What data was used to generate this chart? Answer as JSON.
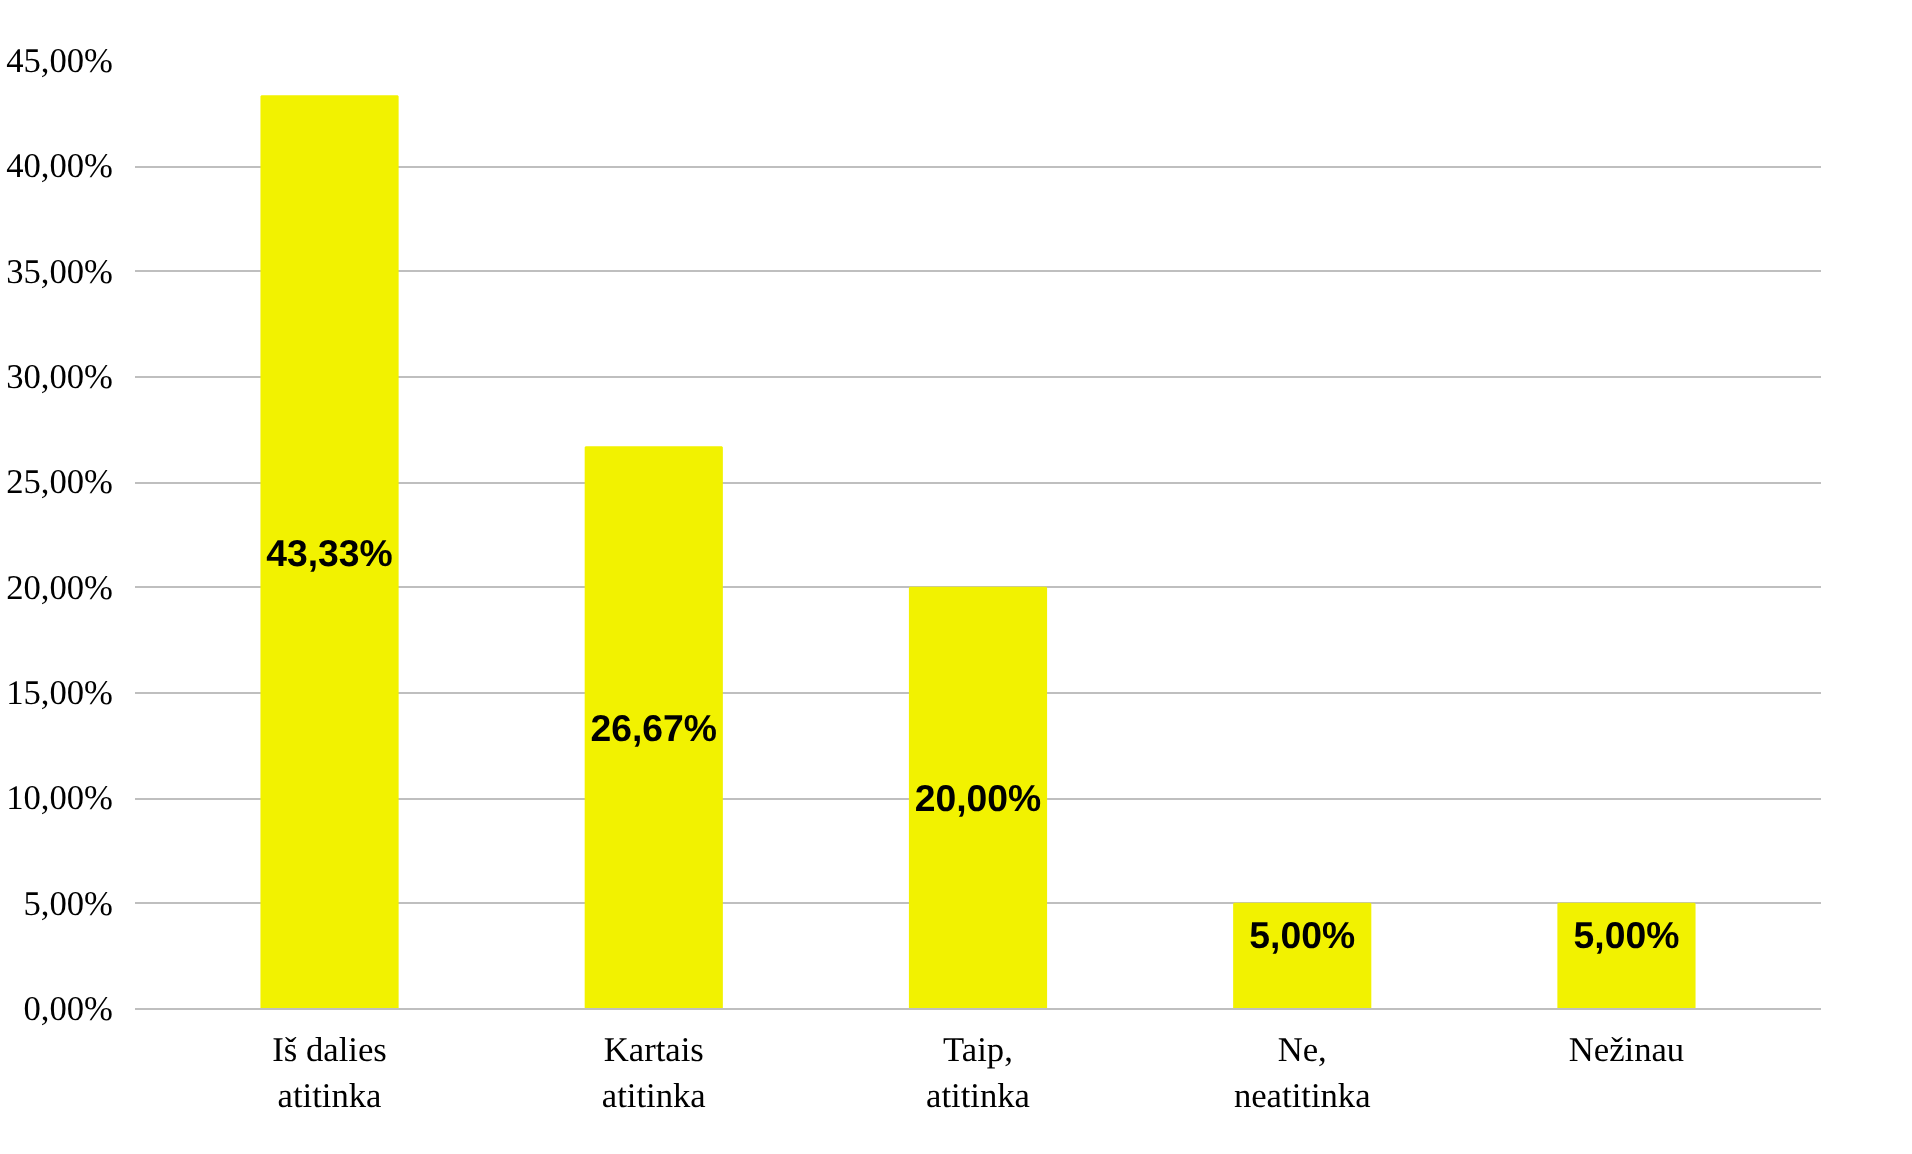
{
  "chart_data": {
    "type": "bar",
    "categories": [
      "Iš dalies\natitinka",
      "Kartais\natitinka",
      "Taip,\natitinka",
      "Ne,\nneatitinka",
      "Nežinau"
    ],
    "values": [
      43.33,
      26.67,
      20.0,
      5.0,
      5.0
    ],
    "value_labels": [
      "43,33%",
      "26,67%",
      "20,00%",
      "5,00%",
      "5,00%"
    ],
    "color": "#f2f200",
    "ylim": [
      0,
      45
    ],
    "yticks": [
      {
        "value": 0,
        "label": "0,00%"
      },
      {
        "value": 5,
        "label": "5,00%"
      },
      {
        "value": 10,
        "label": "10,00%"
      },
      {
        "value": 15,
        "label": "15,00%"
      },
      {
        "value": 20,
        "label": "20,00%"
      },
      {
        "value": 25,
        "label": "25,00%"
      },
      {
        "value": 30,
        "label": "30,00%"
      },
      {
        "value": 35,
        "label": "35,00%"
      },
      {
        "value": 40,
        "label": "40,00%"
      },
      {
        "value": 45,
        "label": "45,00%"
      }
    ],
    "grid": "y"
  }
}
